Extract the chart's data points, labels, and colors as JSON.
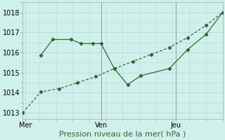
{
  "xlabel": "Pression niveau de la mer( hPa )",
  "background_color": "#d0f0ec",
  "grid_color": "#b0ddd8",
  "line_color": "#2d6a2d",
  "xlim": [
    0,
    12
  ],
  "ylim": [
    1012.7,
    1018.5
  ],
  "yticks": [
    1013,
    1014,
    1015,
    1016,
    1017,
    1018
  ],
  "xtick_positions": [
    0.15,
    4.7,
    9.2
  ],
  "xtick_labels": [
    "Mer",
    "Ven",
    "Jeu"
  ],
  "vline_x": [
    4.7,
    9.2
  ],
  "series1_x": [
    0.0,
    1.1,
    2.2,
    3.3,
    4.4,
    5.5,
    6.6,
    7.7,
    8.8,
    9.9,
    11.0,
    12.0
  ],
  "series1_y": [
    1013.0,
    1014.05,
    1014.2,
    1014.5,
    1014.8,
    1015.2,
    1015.55,
    1015.9,
    1016.25,
    1016.75,
    1017.35,
    1018.0
  ],
  "series2_x": [
    1.1,
    1.8,
    2.9,
    3.5,
    4.2,
    4.7,
    5.5,
    6.3,
    7.1,
    8.8,
    9.9,
    11.0,
    12.0
  ],
  "series2_y": [
    1015.88,
    1016.65,
    1016.65,
    1016.45,
    1016.45,
    1016.45,
    1015.2,
    1014.4,
    1014.85,
    1015.2,
    1016.15,
    1016.9,
    1018.0
  ],
  "fontsize_xlabel": 8,
  "fontsize_ticks": 7
}
